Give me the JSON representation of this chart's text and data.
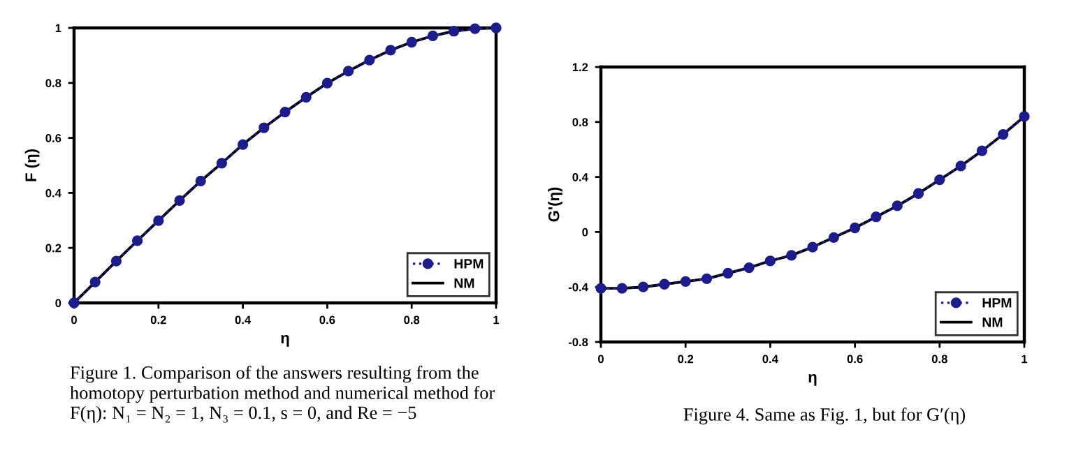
{
  "chart_data": [
    {
      "type": "line",
      "xlabel": "η",
      "ylabel": "F (η)",
      "x": [
        0,
        0.05,
        0.1,
        0.15,
        0.2,
        0.25,
        0.3,
        0.35,
        0.4,
        0.45,
        0.5,
        0.55,
        0.6,
        0.65,
        0.7,
        0.75,
        0.8,
        0.85,
        0.9,
        0.95,
        1
      ],
      "series": [
        {
          "name": "HPM",
          "color": "#1c1c8a",
          "marker": "circle",
          "line_style": "dotted",
          "values": [
            0,
            0.076,
            0.152,
            0.226,
            0.299,
            0.372,
            0.443,
            0.508,
            0.576,
            0.637,
            0.694,
            0.748,
            0.799,
            0.843,
            0.883,
            0.919,
            0.948,
            0.971,
            0.988,
            0.997,
            1
          ]
        },
        {
          "name": "NM",
          "color": "#000000",
          "marker": "none",
          "line_style": "solid",
          "values": [
            0,
            0.076,
            0.152,
            0.226,
            0.299,
            0.372,
            0.443,
            0.508,
            0.576,
            0.637,
            0.694,
            0.748,
            0.799,
            0.843,
            0.883,
            0.919,
            0.948,
            0.971,
            0.988,
            0.997,
            1
          ]
        }
      ],
      "xlim": [
        0,
        1
      ],
      "xticks": [
        0,
        0.2,
        0.4,
        0.6,
        0.8,
        1
      ],
      "ylim": [
        0,
        1
      ],
      "yticks": [
        0,
        0.2,
        0.4,
        0.6,
        0.8,
        1
      ],
      "grid": false,
      "legend": "bottom right",
      "annotations": [
        "Figure 1. Comparison of the answers resulting from the homotopy perturbation method and numerical method for F(η): N₁ = N₂ = 1, N₃ = 0.1, s = 0, and Re = −5"
      ]
    },
    {
      "type": "line",
      "xlabel": "η",
      "ylabel": "G'(η)",
      "x": [
        0,
        0.05,
        0.1,
        0.15,
        0.2,
        0.25,
        0.3,
        0.35,
        0.4,
        0.45,
        0.5,
        0.55,
        0.6,
        0.65,
        0.7,
        0.75,
        0.8,
        0.85,
        0.9,
        0.95,
        1
      ],
      "series": [
        {
          "name": "HPM",
          "color": "#1c1c8a",
          "marker": "circle",
          "line_style": "dotted",
          "values": [
            -0.41,
            -0.41,
            -0.4,
            -0.38,
            -0.36,
            -0.34,
            -0.3,
            -0.26,
            -0.21,
            -0.17,
            -0.11,
            -0.04,
            0.03,
            0.11,
            0.19,
            0.28,
            0.38,
            0.48,
            0.59,
            0.71,
            0.84
          ]
        },
        {
          "name": "NM",
          "color": "#000000",
          "marker": "none",
          "line_style": "solid",
          "values": [
            -0.41,
            -0.41,
            -0.4,
            -0.38,
            -0.36,
            -0.34,
            -0.3,
            -0.26,
            -0.21,
            -0.17,
            -0.11,
            -0.04,
            0.03,
            0.11,
            0.19,
            0.28,
            0.38,
            0.48,
            0.59,
            0.71,
            0.84
          ]
        }
      ],
      "xlim": [
        0,
        1
      ],
      "xticks": [
        0,
        0.2,
        0.4,
        0.6,
        0.8,
        1
      ],
      "ylim": [
        -0.8,
        1.2
      ],
      "yticks": [
        -0.8,
        -0.4,
        0,
        0.4,
        0.8,
        1.2
      ],
      "grid": false,
      "legend": "bottom right",
      "annotations": [
        "Figure 4. Same as Fig. 1, but for G′(η)"
      ]
    }
  ]
}
